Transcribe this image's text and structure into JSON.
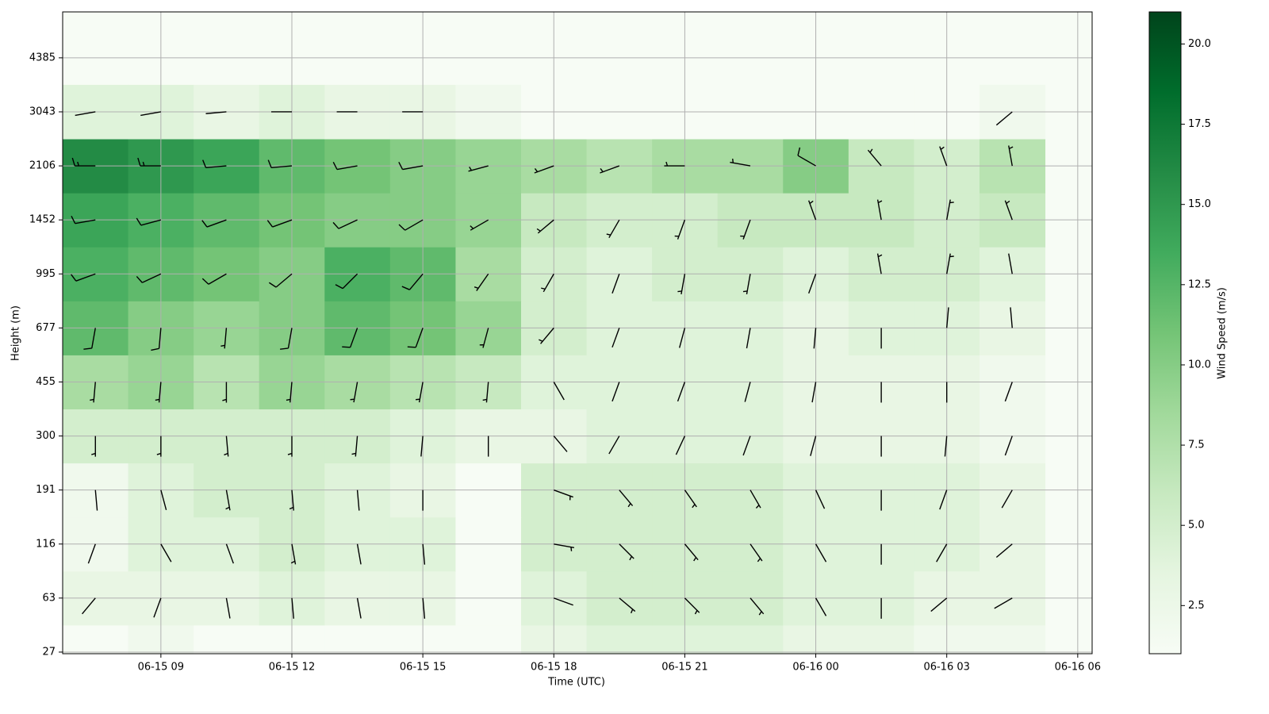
{
  "chart_data": {
    "type": "heatmap_barbs",
    "x_label": "Time (UTC)",
    "y_label": "Height (m)",
    "colorbar_label": "Wind Speed (m/s)",
    "xlim": [
      6.75,
      30.33
    ],
    "xticks": [
      {
        "value": 9,
        "label": "06-15 09"
      },
      {
        "value": 12,
        "label": "06-15 12"
      },
      {
        "value": 15,
        "label": "06-15 15"
      },
      {
        "value": 18,
        "label": "06-15 18"
      },
      {
        "value": 21,
        "label": "06-15 21"
      },
      {
        "value": 24,
        "label": "06-16 00"
      },
      {
        "value": 27,
        "label": "06-16 03"
      },
      {
        "value": 30,
        "label": "06-16 06"
      }
    ],
    "ylim": [
      -0.03,
      11.85
    ],
    "yticks": [
      {
        "value": 0,
        "label": "27"
      },
      {
        "value": 1,
        "label": "63"
      },
      {
        "value": 2,
        "label": "116"
      },
      {
        "value": 3,
        "label": "191"
      },
      {
        "value": 4,
        "label": "300"
      },
      {
        "value": 5,
        "label": "455"
      },
      {
        "value": 6,
        "label": "677"
      },
      {
        "value": 7,
        "label": "995"
      },
      {
        "value": 8,
        "label": "1452"
      },
      {
        "value": 9,
        "label": "2106"
      },
      {
        "value": 10,
        "label": "3043"
      },
      {
        "value": 11,
        "label": "4385"
      }
    ],
    "grid": true,
    "clim": [
      1.0,
      21.0
    ],
    "cticks": [
      2.5,
      {
        "value": 5,
        "label": "5.0"
      },
      7.5,
      {
        "value": 10,
        "label": "10.0"
      },
      12.5,
      {
        "value": 15,
        "label": "15.0"
      },
      17.5,
      {
        "value": 20,
        "label": "20.0"
      }
    ],
    "colormap": [
      "#f7fcf5",
      "#e5f5e0",
      "#c7e9c0",
      "#a1d99b",
      "#74c476",
      "#41ab5d",
      "#238b45",
      "#006d2c",
      "#00441b"
    ],
    "barb_color": "#000000",
    "x": [
      7.5,
      9,
      10.5,
      12,
      13.5,
      15,
      16.5,
      18,
      19.5,
      21,
      22.5,
      24,
      25.5,
      27,
      28.5
    ],
    "y": [
      0,
      1,
      2,
      3,
      4,
      5,
      6,
      7,
      8,
      9,
      10
    ],
    "speed": [
      [
        1,
        2,
        1,
        1,
        1,
        1,
        1,
        3,
        4,
        4,
        4,
        3,
        3,
        2,
        2
      ],
      [
        3,
        3,
        3,
        4,
        3,
        3,
        1,
        4,
        5,
        5,
        5,
        4,
        4,
        3,
        3
      ],
      [
        2,
        4,
        4,
        5,
        4,
        4,
        1,
        5,
        5,
        5,
        5,
        4,
        4,
        4,
        3
      ],
      [
        2,
        4,
        5,
        5,
        4,
        3,
        1,
        5,
        5,
        5,
        5,
        4,
        4,
        4,
        3
      ],
      [
        5,
        5,
        5,
        5,
        5,
        4,
        3,
        3,
        4,
        4,
        4,
        3,
        3,
        3,
        2
      ],
      [
        8,
        9,
        7,
        9,
        8,
        7,
        6,
        4,
        4,
        4,
        4,
        3,
        3,
        3,
        2
      ],
      [
        12,
        10,
        9,
        10,
        12,
        11,
        9,
        5,
        4,
        4,
        4,
        3,
        4,
        4,
        3
      ],
      [
        13,
        12,
        11,
        10,
        13,
        12,
        8,
        5,
        4,
        5,
        5,
        4,
        5,
        5,
        4
      ],
      [
        14,
        13,
        12,
        11,
        10,
        10,
        9,
        6,
        5,
        5,
        6,
        6,
        6,
        5,
        6
      ],
      [
        16,
        15,
        14,
        12,
        11,
        10,
        9,
        8,
        7,
        8,
        8,
        10,
        6,
        5,
        7
      ],
      [
        4,
        4,
        3,
        4,
        3,
        3,
        2,
        1,
        1,
        1,
        1,
        1,
        1,
        1,
        2
      ]
    ],
    "direction": [
      [
        null,
        null,
        null,
        null,
        null,
        null,
        null,
        null,
        null,
        null,
        null,
        null,
        null,
        null,
        null
      ],
      [
        220,
        200,
        170,
        175,
        170,
        175,
        null,
        110,
        130,
        135,
        140,
        150,
        180,
        230,
        240
      ],
      [
        200,
        150,
        160,
        170,
        170,
        175,
        null,
        100,
        135,
        140,
        145,
        150,
        180,
        210,
        230
      ],
      [
        175,
        165,
        170,
        175,
        175,
        180,
        null,
        110,
        140,
        145,
        150,
        155,
        180,
        200,
        210
      ],
      [
        180,
        180,
        175,
        180,
        185,
        185,
        180,
        140,
        210,
        205,
        200,
        195,
        180,
        185,
        200
      ],
      [
        185,
        185,
        180,
        185,
        190,
        190,
        185,
        150,
        200,
        200,
        195,
        190,
        180,
        180,
        200
      ],
      [
        190,
        185,
        185,
        190,
        200,
        200,
        195,
        220,
        200,
        195,
        190,
        185,
        180,
        5,
        355
      ],
      [
        250,
        245,
        240,
        230,
        225,
        220,
        215,
        210,
        200,
        190,
        190,
        200,
        350,
        10,
        350
      ],
      [
        260,
        255,
        250,
        250,
        245,
        240,
        240,
        230,
        210,
        200,
        200,
        340,
        350,
        10,
        340
      ],
      [
        270,
        270,
        265,
        265,
        260,
        260,
        255,
        250,
        250,
        270,
        280,
        300,
        320,
        340,
        350
      ],
      [
        260,
        260,
        265,
        270,
        270,
        270,
        null,
        null,
        null,
        null,
        null,
        null,
        null,
        null,
        230
      ]
    ]
  }
}
